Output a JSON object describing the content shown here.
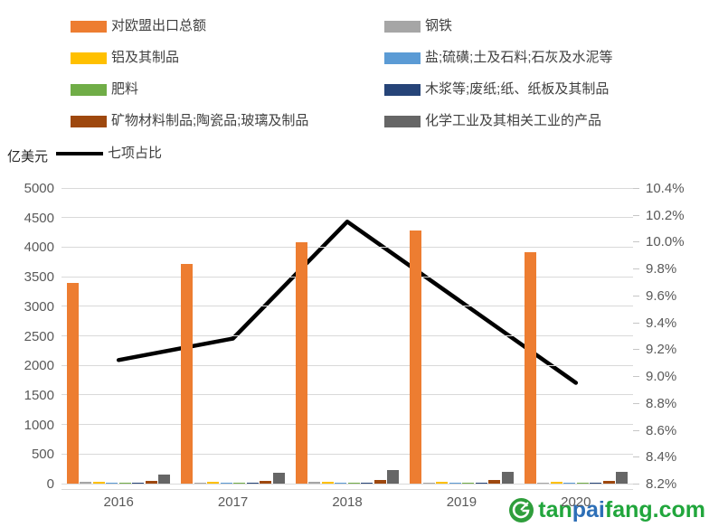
{
  "chart_data": {
    "type": "bar+line",
    "title": "",
    "categories": [
      "2016",
      "2017",
      "2018",
      "2019",
      "2020"
    ],
    "bar_axis": {
      "title": "亿美元",
      "min": 0,
      "max": 5000,
      "step": 500
    },
    "line_axis": {
      "min": 8.2,
      "max": 10.4,
      "step": 0.2,
      "suffix": "%"
    },
    "grid": true,
    "legend_position": "top",
    "series": [
      {
        "name": "对欧盟出口总额",
        "color": "#ED7D31",
        "pattern": "solid",
        "values": [
          3390,
          3720,
          4080,
          4280,
          3910
        ]
      },
      {
        "name": "钢铁",
        "color": "#A6A6A6",
        "pattern": "hatch",
        "values": [
          25,
          20,
          25,
          15,
          10
        ]
      },
      {
        "name": "铝及其制品",
        "color": "#FFC000",
        "pattern": "solid",
        "values": [
          30,
          28,
          35,
          30,
          26
        ]
      },
      {
        "name": "盐;硫磺;土及石料;石灰及水泥等",
        "color": "#5B9BD5",
        "pattern": "solid",
        "values": [
          6,
          6,
          7,
          6,
          5
        ]
      },
      {
        "name": "肥料",
        "color": "#70AD47",
        "pattern": "solid",
        "values": [
          2,
          2,
          2,
          2,
          2
        ]
      },
      {
        "name": "木浆等;废纸;纸、纸板及其制品",
        "color": "#264478",
        "pattern": "solid",
        "values": [
          12,
          14,
          15,
          12,
          10
        ]
      },
      {
        "name": "矿物材料制品;陶瓷品;玻璃及制品",
        "color": "#9E480E",
        "pattern": "solid",
        "values": [
          45,
          52,
          62,
          55,
          50
        ]
      },
      {
        "name": "化学工业及其相关工业的产品",
        "color": "#666666",
        "pattern": "dots",
        "values": [
          150,
          185,
          230,
          195,
          195
        ]
      }
    ],
    "line_series": {
      "name": "七项占比",
      "color": "#000000",
      "values": [
        9.12,
        9.28,
        10.15,
        9.55,
        8.95
      ]
    }
  },
  "watermark": {
    "part1": "tan",
    "part2": "pai",
    "part3": "fang.com",
    "green": "#21a63c",
    "blue": "#2d6fb7",
    "logo_color": "#2f9e3c"
  }
}
